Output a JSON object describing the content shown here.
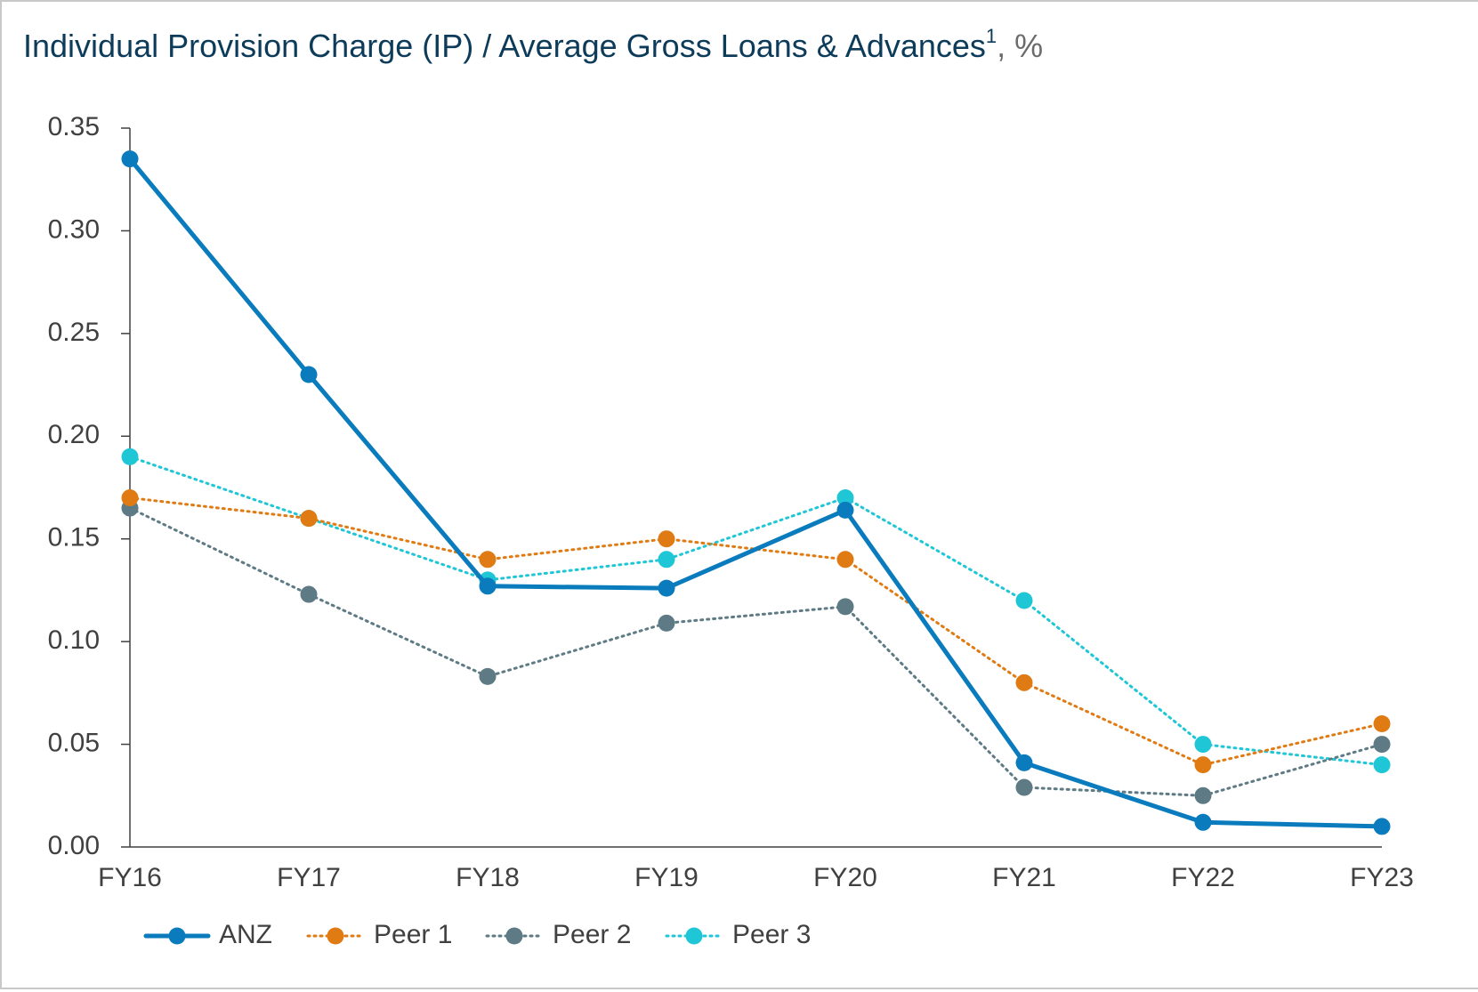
{
  "chart_data": {
    "type": "line",
    "title": "Individual Provision Charge (IP) / Average Gross Loans & Advances",
    "title_footnote": "1",
    "title_unit": ", %",
    "categories": [
      "FY16",
      "FY17",
      "FY18",
      "FY19",
      "FY20",
      "FY21",
      "FY22",
      "FY23"
    ],
    "series": [
      {
        "name": "ANZ",
        "color": "#0a7bbd",
        "line_style": "solid",
        "values": [
          0.335,
          0.23,
          0.127,
          0.126,
          0.164,
          0.041,
          0.012,
          0.01
        ]
      },
      {
        "name": "Peer 1",
        "color": "#e07b14",
        "line_style": "dotted",
        "values": [
          0.17,
          0.16,
          0.14,
          0.15,
          0.14,
          0.08,
          0.04,
          0.06
        ]
      },
      {
        "name": "Peer 2",
        "color": "#5e7a85",
        "line_style": "dotted",
        "values": [
          0.165,
          0.123,
          0.083,
          0.109,
          0.117,
          0.029,
          0.025,
          0.05
        ]
      },
      {
        "name": "Peer 3",
        "color": "#1fc6d6",
        "line_style": "dotted",
        "values": [
          0.19,
          0.16,
          0.13,
          0.14,
          0.17,
          0.12,
          0.05,
          0.04
        ]
      }
    ],
    "ylim": [
      0,
      0.35
    ],
    "yticks": [
      {
        "value": 0,
        "label": "0.00"
      },
      {
        "value": 0.05,
        "label": "0.05"
      },
      {
        "value": 0.1,
        "label": "0.10"
      },
      {
        "value": 0.15,
        "label": "0.15"
      },
      {
        "value": 0.2,
        "label": "0.20"
      },
      {
        "value": 0.25,
        "label": "0.25"
      },
      {
        "value": 0.3,
        "label": "0.30"
      },
      {
        "value": 0.35,
        "label": "0.35"
      }
    ],
    "grid": false,
    "legend": "bottom-left"
  }
}
